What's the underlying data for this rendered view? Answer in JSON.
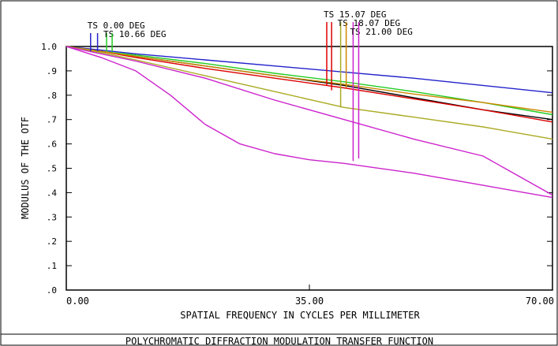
{
  "chart_data": {
    "type": "line",
    "title": "POLYCHROMATIC DIFFRACTION MODULATION TRANSFER FUNCTION",
    "xlabel": "SPATIAL FREQUENCY IN CYCLES PER MILLIMETER",
    "ylabel": "MODULUS OF THE OTF",
    "xlim": [
      0,
      70
    ],
    "ylim": [
      0,
      1.0
    ],
    "x_tick_labels": [
      {
        "value": 0,
        "label": "0.00"
      },
      {
        "value": 35,
        "label": "35.00"
      },
      {
        "value": 70,
        "label": "70.00"
      }
    ],
    "y_tick_labels": [
      {
        "value": 0.0,
        "label": ".0"
      },
      {
        "value": 0.1,
        "label": ".1"
      },
      {
        "value": 0.2,
        "label": ".2"
      },
      {
        "value": 0.3,
        "label": ".3"
      },
      {
        "value": 0.4,
        "label": ".4"
      },
      {
        "value": 0.5,
        "label": ".5"
      },
      {
        "value": 0.6,
        "label": ".6"
      },
      {
        "value": 0.7,
        "label": ".7"
      },
      {
        "value": 0.8,
        "label": ".8"
      },
      {
        "value": 0.9,
        "label": ".9"
      },
      {
        "value": 1.0,
        "label": "1.0"
      }
    ],
    "grid": false,
    "series": [
      {
        "color": "#000000",
        "x": [
          0,
          5,
          10,
          20,
          30,
          40,
          50,
          60,
          70
        ],
        "y": [
          1.0,
          0.98,
          0.96,
          0.92,
          0.88,
          0.84,
          0.79,
          0.74,
          0.7
        ]
      },
      {
        "color": "#2222cc",
        "x": [
          0,
          5,
          10,
          20,
          30,
          40,
          50,
          60,
          70
        ],
        "y": [
          1.0,
          0.985,
          0.97,
          0.945,
          0.92,
          0.895,
          0.87,
          0.84,
          0.81
        ]
      },
      {
        "color": "#22cc22",
        "x": [
          0,
          5,
          10,
          20,
          30,
          40,
          50,
          60,
          70
        ],
        "y": [
          1.0,
          0.98,
          0.965,
          0.93,
          0.89,
          0.855,
          0.815,
          0.77,
          0.72
        ]
      },
      {
        "color": "#dd0000",
        "x": [
          0,
          5,
          10,
          20,
          30,
          40,
          50,
          60,
          70
        ],
        "y": [
          1.0,
          0.98,
          0.955,
          0.91,
          0.87,
          0.83,
          0.785,
          0.74,
          0.69
        ]
      },
      {
        "color": "#cc8800",
        "x": [
          0,
          5,
          10,
          20,
          30,
          40,
          50,
          60,
          70
        ],
        "y": [
          1.0,
          0.98,
          0.96,
          0.92,
          0.88,
          0.845,
          0.805,
          0.77,
          0.73
        ]
      },
      {
        "color": "#aaaa22",
        "x": [
          0,
          5,
          10,
          20,
          30,
          40,
          50,
          60,
          70
        ],
        "y": [
          1.0,
          0.975,
          0.945,
          0.88,
          0.815,
          0.75,
          0.71,
          0.67,
          0.62
        ]
      },
      {
        "color": "#cc22cc",
        "x": [
          0,
          5,
          10,
          20,
          30,
          40,
          50,
          60,
          70
        ],
        "y": [
          1.0,
          0.97,
          0.94,
          0.87,
          0.78,
          0.7,
          0.62,
          0.55,
          0.39
        ]
      },
      {
        "color": "#cc22cc",
        "x": [
          0,
          5,
          10,
          15,
          20,
          25,
          30,
          35,
          40,
          50,
          60,
          70
        ],
        "y": [
          1.0,
          0.955,
          0.9,
          0.8,
          0.68,
          0.6,
          0.56,
          0.535,
          0.52,
          0.48,
          0.43,
          0.38
        ]
      }
    ],
    "field_markers": [
      {
        "label": "TS 0.00 DEG",
        "x": 3.5,
        "color": "#2222cc"
      },
      {
        "label": "",
        "x": 4.5,
        "color": "#2222cc"
      },
      {
        "label": "TS 10.66 DEG",
        "x": 5.8,
        "color": "#22cc22"
      },
      {
        "label": "",
        "x": 6.6,
        "color": "#22cc22"
      },
      {
        "label": "TS 15.07 DEG",
        "x": 37.5,
        "y_low": 0.84,
        "color": "#dd0000"
      },
      {
        "label": "",
        "x": 38.2,
        "y_low": 0.82,
        "color": "#dd0000"
      },
      {
        "label": "TS 18.07 DEG",
        "x": 39.5,
        "y_low": 0.75,
        "color": "#aaaa22"
      },
      {
        "label": "",
        "x": 40.3,
        "y_low": 0.83,
        "color": "#cc8800"
      },
      {
        "label": "TS 21.00 DEG",
        "x": 41.3,
        "y_low": 0.53,
        "color": "#cc22cc"
      },
      {
        "label": "",
        "x": 42.1,
        "y_low": 0.54,
        "color": "#cc22cc"
      }
    ]
  }
}
